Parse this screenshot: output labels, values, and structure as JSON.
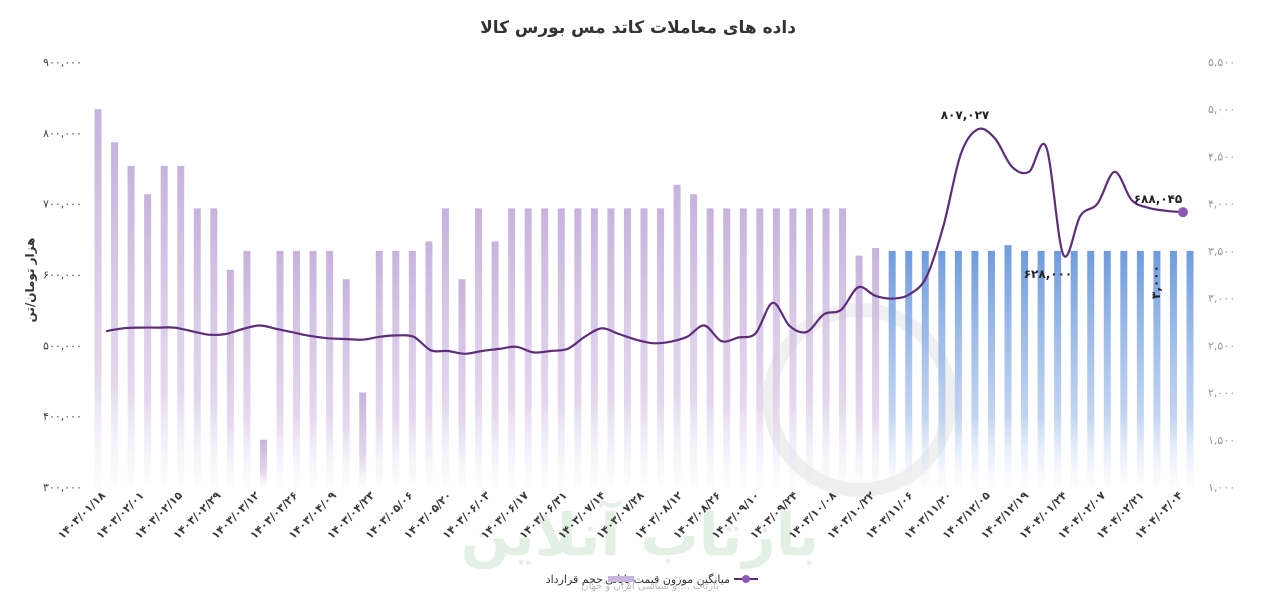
{
  "chart_data": {
    "type": "bar",
    "title": "داده های معاملات کاتد مس بورس کالا",
    "ylabel": "هزار تومان/تن",
    "ylim": [
      300000,
      900000
    ],
    "yticks": [
      "۳۰۰,۰۰۰",
      "۴۰۰,۰۰۰",
      "۵۰۰,۰۰۰",
      "۶۰۰,۰۰۰",
      "۷۰۰,۰۰۰",
      "۸۰۰,۰۰۰",
      "۹۰۰,۰۰۰"
    ],
    "y2lim": [
      1000,
      5500
    ],
    "y2ticks": [
      "۱,۰۰۰",
      "۱,۵۰۰",
      "۲,۰۰۰",
      "۲,۵۰۰",
      "۳,۰۰۰",
      "۳,۵۰۰",
      "۴,۰۰۰",
      "۴,۵۰۰",
      "۵,۰۰۰",
      "۵,۵۰۰"
    ],
    "xtick_labels": [
      "۱۴۰۳/۰۱/۱۸",
      "۱۴۰۳/۰۲/۰۱",
      "۱۴۰۳/۰۲/۱۵",
      "۱۴۰۳/۰۲/۲۹",
      "۱۴۰۳/۰۳/۱۲",
      "۱۴۰۳/۰۳/۲۶",
      "۱۴۰۳/۰۴/۰۹",
      "۱۴۰۳/۰۴/۲۳",
      "۱۴۰۳/۰۵/۰۶",
      "۱۴۰۳/۰۵/۲۰",
      "۱۴۰۳/۰۶/۰۳",
      "۱۴۰۳/۰۶/۱۷",
      "۱۴۰۳/۰۶/۳۱",
      "۱۴۰۳/۰۷/۱۴",
      "۱۴۰۳/۰۷/۲۸",
      "۱۴۰۳/۰۸/۱۲",
      "۱۴۰۳/۰۸/۲۶",
      "۱۴۰۳/۰۹/۱۰",
      "۱۴۰۳/۰۹/۲۴",
      "۱۴۰۳/۱۰/۰۸",
      "۱۴۰۳/۱۰/۲۲",
      "۱۴۰۳/۱۱/۰۶",
      "۱۴۰۳/۱۱/۲۰",
      "۱۴۰۳/۱۲/۰۵",
      "۱۴۰۳/۱۲/۱۹",
      "۱۴۰۴/۰۱/۲۴",
      "۱۴۰۴/۰۲/۰۷",
      "۱۴۰۴/۰۲/۲۱",
      "۱۴۰۴/۰۳/۰۴"
    ],
    "series": [
      {
        "name": "حجم قرارداد",
        "axis": "right",
        "color": "#c8b4dc",
        "forecast_color": "#7ea6e0",
        "forecast_from_index": 48,
        "values": [
          5000,
          4650,
          4400,
          4100,
          4400,
          4400,
          3950,
          3950,
          3300,
          3500,
          1500,
          3500,
          3500,
          3500,
          3500,
          3200,
          2000,
          3500,
          3500,
          3500,
          3600,
          3950,
          3200,
          3950,
          3600,
          3950,
          3950,
          3950,
          3950,
          3950,
          3950,
          3950,
          3950,
          3950,
          3950,
          4200,
          4100,
          3950,
          3950,
          3950,
          3950,
          3950,
          3950,
          3950,
          3950,
          3950,
          3450,
          3530,
          3500,
          3500,
          3500,
          3500,
          3500,
          3500,
          3500,
          3560,
          3500,
          3500,
          3500,
          3500,
          3500,
          3500,
          3500,
          3500,
          3500,
          3500,
          3500
        ]
      },
      {
        "name": "میانگین موزون قیمت پایانی",
        "axis": "left",
        "color": "#5e2d79",
        "values": [
          520000,
          524000,
          525000,
          525000,
          525000,
          520000,
          515000,
          516000,
          523000,
          528000,
          523000,
          518000,
          513000,
          510000,
          509000,
          508000,
          512000,
          514000,
          512000,
          493000,
          492000,
          488000,
          492000,
          495000,
          498000,
          490000,
          492000,
          495000,
          512000,
          524000,
          516000,
          508000,
          503000,
          505000,
          512000,
          528000,
          506000,
          511000,
          517000,
          560000,
          527000,
          519000,
          544000,
          550000,
          582000,
          570000,
          566000,
          572000,
          597000,
          670000,
          770000,
          805000,
          792000,
          752000,
          745000,
          780000,
          628000,
          683000,
          700000,
          745000,
          705000,
          694000,
          690000,
          688000
        ]
      }
    ],
    "annotations": [
      {
        "label": "۸۰۷,۰۲۷"
      },
      {
        "label": "۶۲۸,۰۰۰"
      },
      {
        "label": "۶۸۸,۰۴۵"
      },
      {
        "label": "۳,۰۰۰"
      }
    ],
    "legend": {
      "placement": "bottom"
    },
    "grid": false,
    "watermark": {
      "text": "بازتاب آنلاین",
      "subtext": "بازتاب ... و سیاسی ایران و جهان"
    }
  }
}
